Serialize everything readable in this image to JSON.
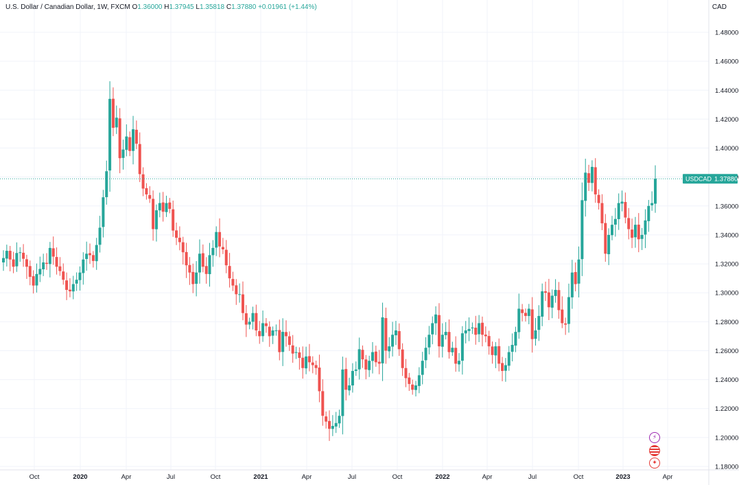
{
  "header": {
    "symbol_title": "U.S. Dollar / Canadian Dollar, 1W, FXCM",
    "o_label": "O",
    "o_value": "1.36000",
    "h_label": "H",
    "h_value": "1.37945",
    "l_label": "L",
    "l_value": "1.35818",
    "c_label": "C",
    "c_value": "1.37880",
    "change": "+0.01961 (+1.44%)"
  },
  "currency_label": "CAD",
  "price_tag": {
    "symbol": "USDCAD",
    "value": "1.37880"
  },
  "colors": {
    "up": "#26a69a",
    "down": "#ef5350",
    "grid": "#f0f3fa",
    "text": "#131722"
  },
  "icons": [
    "bolt-icon",
    "us-flag-icon",
    "canada-flag-icon"
  ],
  "chart_data": {
    "type": "candlestick",
    "title": "U.S. Dollar / Canadian Dollar, 1W, FXCM",
    "interval": "1W",
    "ylim": [
      1.175,
      1.495
    ],
    "y_ticks": [
      "1.48000",
      "1.46000",
      "1.44000",
      "1.42000",
      "1.40000",
      "1.38000",
      "1.36000",
      "1.34000",
      "1.32000",
      "1.30000",
      "1.28000",
      "1.26000",
      "1.24000",
      "1.22000",
      "1.20000",
      "1.18000"
    ],
    "x_ticks": [
      "Oct",
      "2020",
      "Apr",
      "Jul",
      "Oct",
      "2021",
      "Apr",
      "Jul",
      "Oct",
      "2022",
      "Apr",
      "Jul",
      "Oct",
      "2023",
      "Apr"
    ],
    "last_price": 1.3788,
    "closes": [
      1.324,
      1.329,
      1.323,
      1.318,
      1.3275,
      1.328,
      1.3235,
      1.318,
      1.311,
      1.305,
      1.313,
      1.3165,
      1.321,
      1.32,
      1.331,
      1.325,
      1.318,
      1.315,
      1.309,
      1.302,
      1.301,
      1.306,
      1.309,
      1.314,
      1.323,
      1.327,
      1.326,
      1.322,
      1.333,
      1.345,
      1.366,
      1.384,
      1.434,
      1.414,
      1.421,
      1.393,
      1.399,
      1.408,
      1.398,
      1.413,
      1.403,
      1.382,
      1.372,
      1.368,
      1.365,
      1.344,
      1.357,
      1.362,
      1.356,
      1.362,
      1.358,
      1.343,
      1.338,
      1.335,
      1.328,
      1.319,
      1.314,
      1.306,
      1.314,
      1.327,
      1.318,
      1.313,
      1.326,
      1.331,
      1.342,
      1.332,
      1.33,
      1.319,
      1.31,
      1.305,
      1.299,
      1.299,
      1.286,
      1.278,
      1.28,
      1.286,
      1.274,
      1.27,
      1.279,
      1.277,
      1.27,
      1.274,
      1.274,
      1.259,
      1.273,
      1.27,
      1.264,
      1.258,
      1.259,
      1.255,
      1.248,
      1.256,
      1.252,
      1.25,
      1.248,
      1.232,
      1.215,
      1.211,
      1.206,
      1.208,
      1.21,
      1.215,
      1.247,
      1.233,
      1.236,
      1.246,
      1.247,
      1.261,
      1.254,
      1.247,
      1.253,
      1.259,
      1.252,
      1.251,
      1.283,
      1.26,
      1.263,
      1.271,
      1.274,
      1.261,
      1.248,
      1.241,
      1.237,
      1.233,
      1.236,
      1.243,
      1.253,
      1.262,
      1.271,
      1.279,
      1.285,
      1.263,
      1.271,
      1.273,
      1.259,
      1.262,
      1.251,
      1.253,
      1.272,
      1.274,
      1.275,
      1.276,
      1.271,
      1.279,
      1.271,
      1.27,
      1.263,
      1.257,
      1.263,
      1.251,
      1.246,
      1.25,
      1.259,
      1.264,
      1.273,
      1.289,
      1.286,
      1.284,
      1.289,
      1.268,
      1.274,
      1.284,
      1.301,
      1.3,
      1.29,
      1.298,
      1.302,
      1.288,
      1.279,
      1.278,
      1.297,
      1.314,
      1.306,
      1.323,
      1.364,
      1.383,
      1.376,
      1.387,
      1.368,
      1.362,
      1.348,
      1.327,
      1.34,
      1.347,
      1.351,
      1.362,
      1.363,
      1.352,
      1.344,
      1.338,
      1.347,
      1.337,
      1.34,
      1.35,
      1.36,
      1.362,
      1.3788
    ]
  }
}
